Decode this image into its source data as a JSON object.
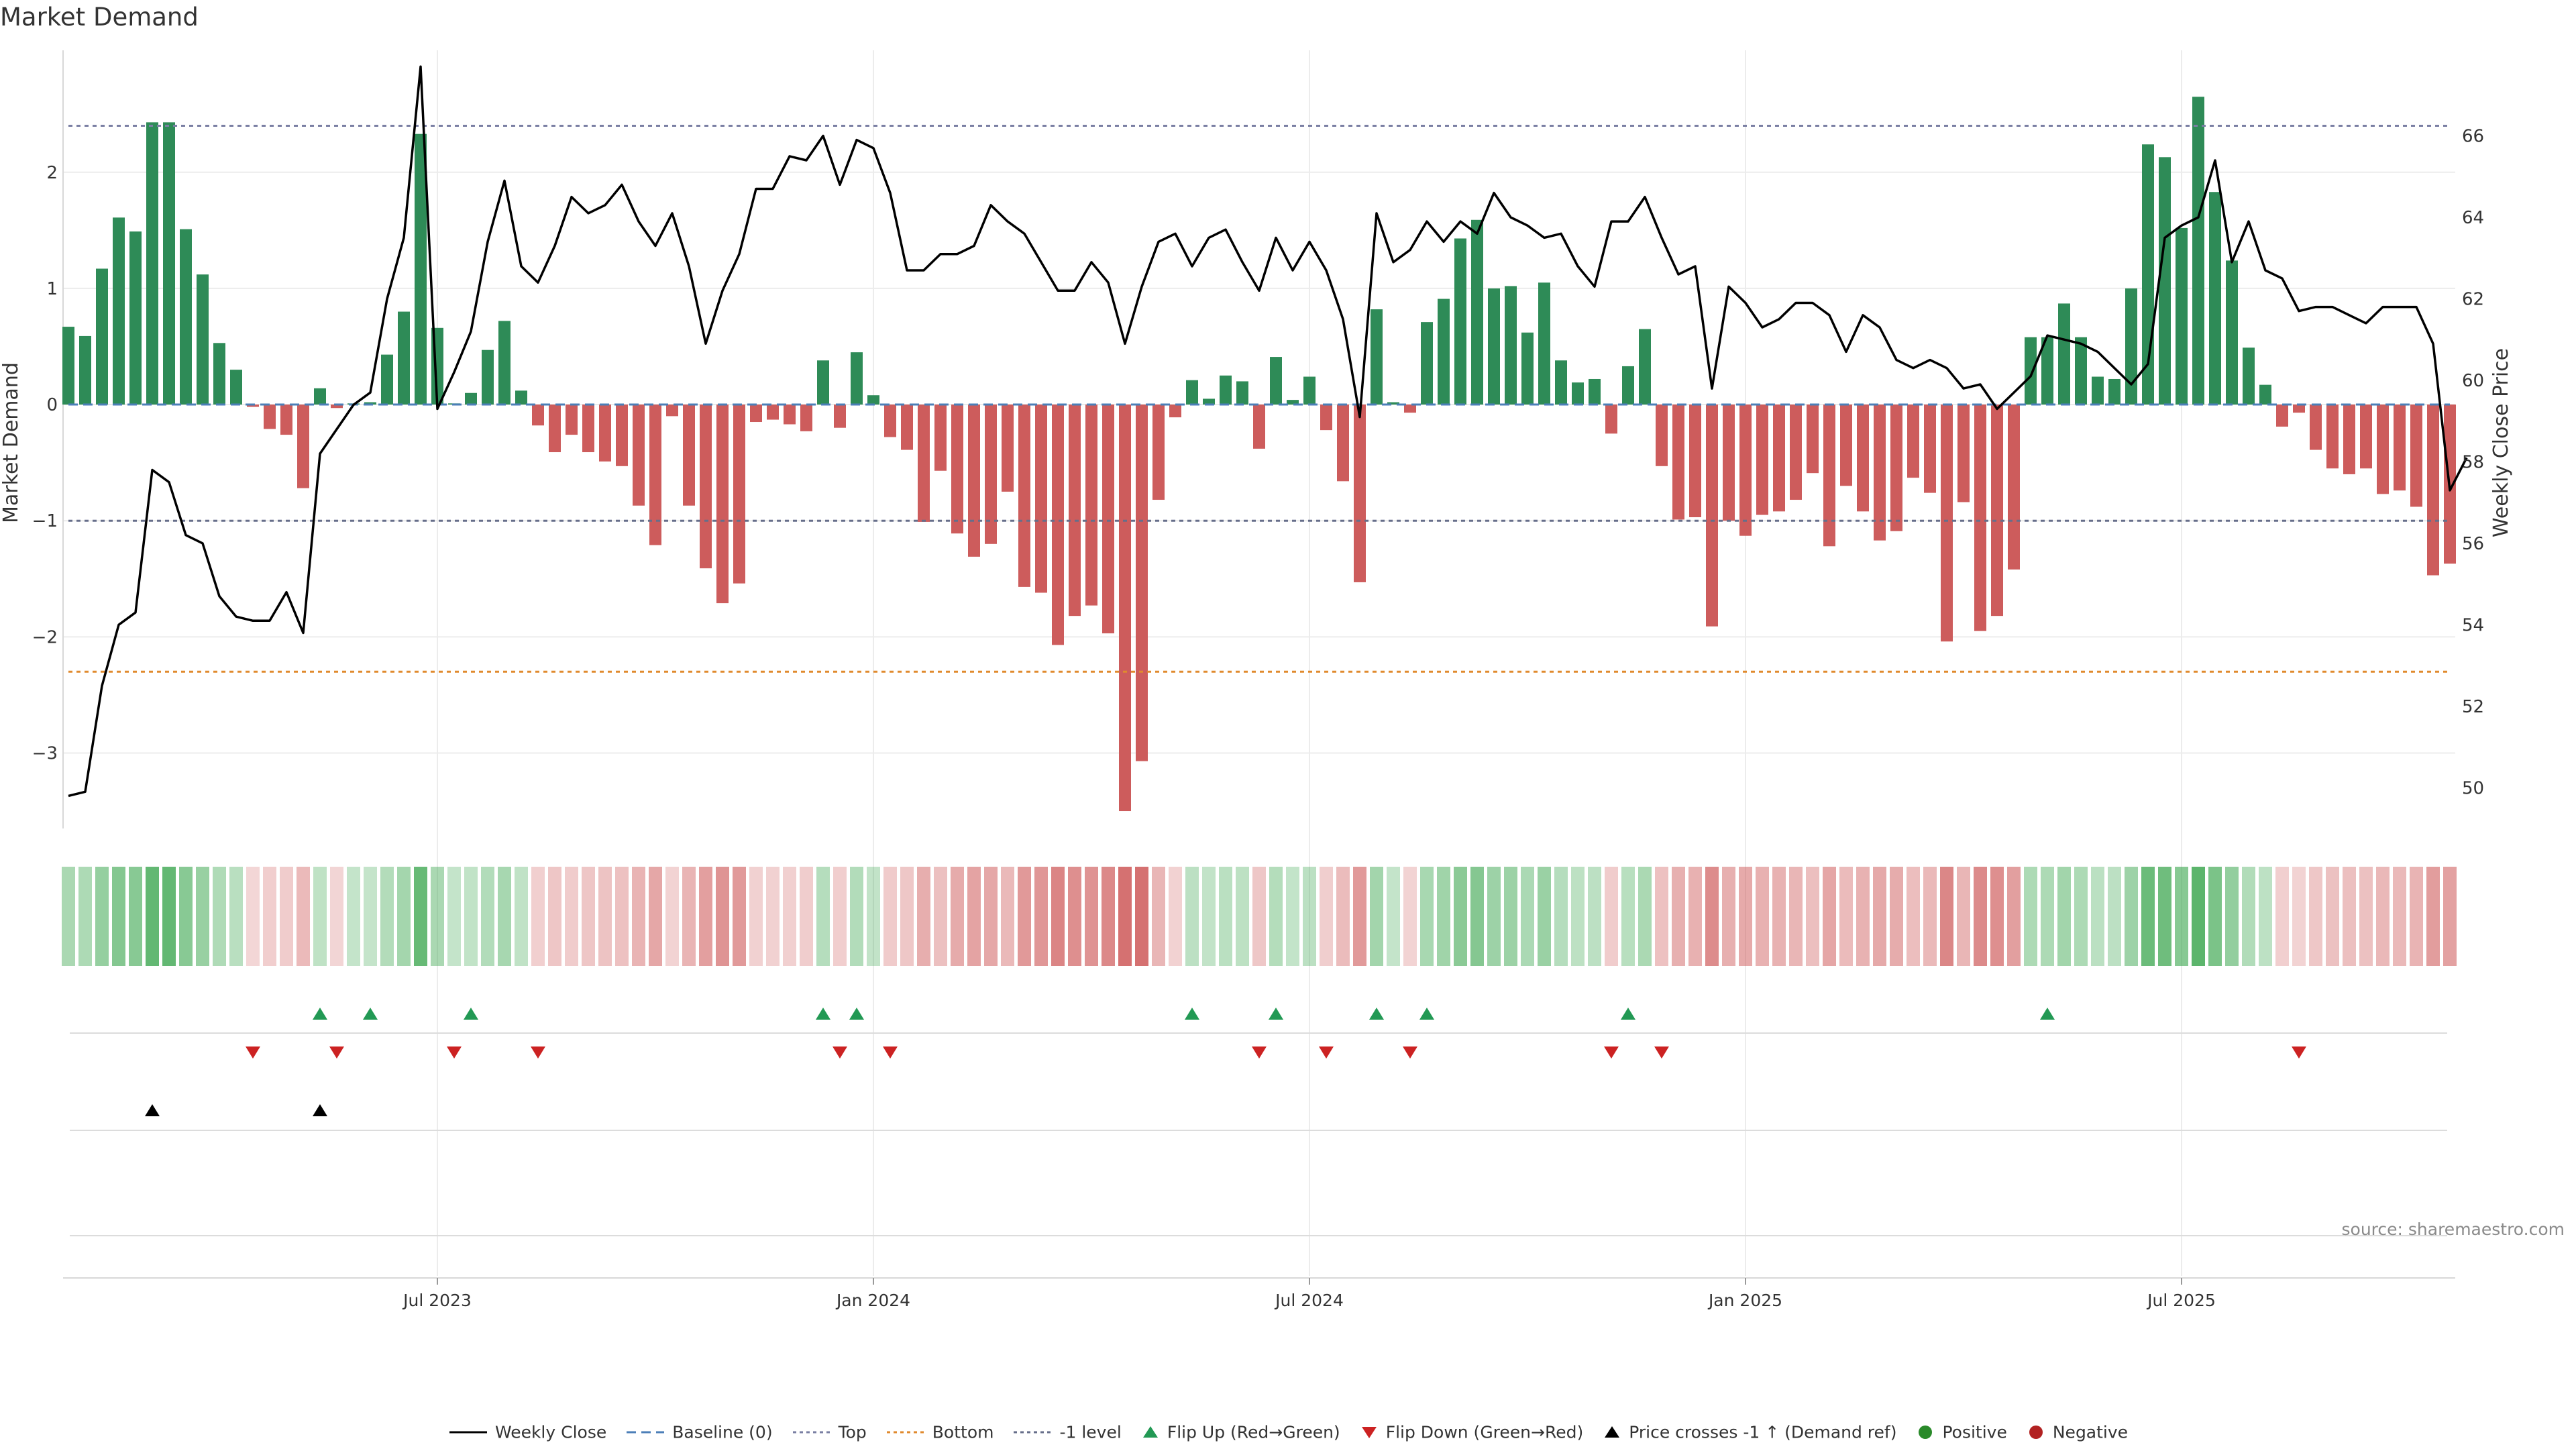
{
  "chart_data": {
    "type": "bar",
    "title": "Market Demand",
    "source": "source: sharemaestro.com",
    "y_left": {
      "label": "Market Demand",
      "range": [
        -3.65,
        3.05
      ],
      "ticks": [
        {
          "v": 2,
          "t": "2"
        },
        {
          "v": 1,
          "t": "1"
        },
        {
          "v": 0,
          "t": "0"
        },
        {
          "v": -1,
          "t": "−1"
        },
        {
          "v": -2,
          "t": "−2"
        },
        {
          "v": -3,
          "t": "−3"
        }
      ]
    },
    "y_right": {
      "label": "Weekly Close Price",
      "range": [
        49,
        68.1
      ],
      "ticks": [
        {
          "v": 50,
          "t": "50"
        },
        {
          "v": 52,
          "t": "52"
        },
        {
          "v": 54,
          "t": "54"
        },
        {
          "v": 56,
          "t": "56"
        },
        {
          "v": 58,
          "t": "58"
        },
        {
          "v": 60,
          "t": "60"
        },
        {
          "v": 62,
          "t": "62"
        },
        {
          "v": 64,
          "t": "64"
        },
        {
          "v": 66,
          "t": "66"
        }
      ]
    },
    "x_ticks": [
      {
        "i": 22,
        "t": "Jul 2023"
      },
      {
        "i": 48,
        "t": "Jan 2024"
      },
      {
        "i": 74,
        "t": "Jul 2024"
      },
      {
        "i": 100,
        "t": "Jan 2025"
      },
      {
        "i": 126,
        "t": "Jul 2025"
      }
    ],
    "reference_lines": [
      {
        "name": "Top",
        "value": 2.4,
        "color": "#7a7fa3",
        "dash": "6,6"
      },
      {
        "name": "Bottom",
        "value": -2.3,
        "color": "#e08a2e",
        "dash": "6,6"
      },
      {
        "name": "-1 level",
        "value": -1,
        "color": "#666e8a",
        "dash": "6,6"
      },
      {
        "name": "Baseline (0)",
        "value": 0,
        "color": "#4c7fb8",
        "dash": "14,8"
      }
    ],
    "colors": {
      "positive": "#2e8b57",
      "negative": "#cd5c5c",
      "close": "#000000",
      "flip_up": "#229954",
      "flip_down": "#cc2222",
      "cross": "#000000"
    },
    "demand": [
      0.67,
      0.59,
      1.17,
      1.61,
      1.49,
      2.43,
      2.43,
      1.51,
      1.12,
      0.53,
      0.3,
      -0.02,
      -0.21,
      -0.26,
      -0.72,
      0.14,
      -0.03,
      0.01,
      0.02,
      0.43,
      0.8,
      2.33,
      0.66,
      0.01,
      0.1,
      0.47,
      0.72,
      0.12,
      -0.18,
      -0.41,
      -0.26,
      -0.41,
      -0.49,
      -0.53,
      -0.87,
      -1.21,
      -0.1,
      -0.87,
      -1.41,
      -1.71,
      -1.54,
      -0.15,
      -0.13,
      -0.17,
      -0.23,
      0.38,
      -0.2,
      0.45,
      0.08,
      -0.28,
      -0.39,
      -1.01,
      -0.57,
      -1.11,
      -1.31,
      -1.2,
      -0.75,
      -1.57,
      -1.62,
      -2.07,
      -1.82,
      -1.73,
      -1.97,
      -3.5,
      -3.07,
      -0.82,
      -0.11,
      0.21,
      0.05,
      0.25,
      0.2,
      -0.38,
      0.41,
      0.04,
      0.24,
      -0.22,
      -0.66,
      -1.53,
      0.82,
      0.02,
      -0.07,
      0.71,
      0.91,
      1.43,
      1.59,
      1,
      1.02,
      0.62,
      1.05,
      0.38,
      0.19,
      0.22,
      -0.25,
      0.33,
      0.65,
      -0.53,
      -0.99,
      -0.97,
      -1.91,
      -1,
      -1.13,
      -0.95,
      -0.92,
      -0.82,
      -0.59,
      -1.22,
      -0.7,
      -0.92,
      -1.17,
      -1.09,
      -0.63,
      -0.76,
      -2.04,
      -0.84,
      -1.95,
      -1.82,
      -1.42,
      0.58,
      0.58,
      0.87,
      0.58,
      0.24,
      0.22,
      1,
      2.24,
      2.13,
      1.52,
      2.65,
      1.83,
      1.24,
      0.49,
      0.17,
      -0.19,
      -0.07,
      -0.39,
      -0.55,
      -0.6,
      -0.55,
      -0.77,
      -0.74,
      -0.88,
      -1.47,
      -1.37
    ],
    "weekly_close": [
      49.8,
      49.9,
      52.5,
      54,
      54.3,
      57.8,
      57.5,
      56.2,
      56,
      54.7,
      54.2,
      54.1,
      54.1,
      54.8,
      53.8,
      58.2,
      58.8,
      59.4,
      59.7,
      62,
      63.5,
      67.7,
      59.3,
      60.2,
      61.2,
      63.4,
      64.9,
      62.8,
      62.4,
      63.3,
      64.5,
      64.1,
      64.3,
      64.8,
      63.9,
      63.3,
      64.1,
      62.8,
      60.9,
      62.2,
      63.1,
      64.7,
      64.7,
      65.5,
      65.4,
      66,
      64.8,
      65.9,
      65.7,
      64.6,
      62.7,
      62.7,
      63.1,
      63.1,
      63.3,
      64.3,
      63.9,
      63.6,
      62.9,
      62.2,
      62.2,
      62.9,
      62.4,
      60.9,
      62.3,
      63.4,
      63.6,
      62.8,
      63.5,
      63.7,
      62.9,
      62.2,
      63.5,
      62.7,
      63.4,
      62.7,
      61.5,
      59.1,
      64.1,
      62.9,
      63.2,
      63.9,
      63.4,
      63.9,
      63.6,
      64.6,
      64,
      63.8,
      63.5,
      63.6,
      62.8,
      62.3,
      63.9,
      63.9,
      64.5,
      63.5,
      62.6,
      62.8,
      59.8,
      62.3,
      61.9,
      61.3,
      61.5,
      61.9,
      61.9,
      61.6,
      60.7,
      61.6,
      61.3,
      60.5,
      60.3,
      60.5,
      60.3,
      59.8,
      59.9,
      59.3,
      59.7,
      60.1,
      61.1,
      61,
      60.9,
      60.7,
      60.3,
      59.9,
      60.4,
      63.5,
      63.8,
      64,
      65.4,
      62.9,
      63.9,
      62.7,
      62.5,
      61.7,
      61.8,
      61.8,
      61.6,
      61.4,
      61.8,
      61.8,
      61.8,
      60.9,
      57.3,
      58.1
    ],
    "flip_up": [
      15,
      18,
      24,
      45,
      47,
      67,
      72,
      78,
      81,
      93,
      118
    ],
    "flip_down": [
      11,
      16,
      23,
      28,
      46,
      49,
      71,
      75,
      80,
      92,
      95,
      133
    ],
    "price_crosses": [
      5,
      15
    ],
    "legend": [
      {
        "kind": "line",
        "label": "Weekly Close",
        "color": "#000000",
        "dash": ""
      },
      {
        "kind": "line",
        "label": "Baseline (0)",
        "color": "#4c7fb8",
        "dash": "14,8"
      },
      {
        "kind": "line",
        "label": "Top",
        "color": "#7a7fa3",
        "dash": "5,5"
      },
      {
        "kind": "line",
        "label": "Bottom",
        "color": "#e08a2e",
        "dash": "5,5"
      },
      {
        "kind": "line",
        "label": "-1 level",
        "color": "#666e8a",
        "dash": "5,5"
      },
      {
        "kind": "up",
        "label": "Flip Up (Red→Green)",
        "color": "#229954"
      },
      {
        "kind": "down",
        "label": "Flip Down (Green→Red)",
        "color": "#cc2222"
      },
      {
        "kind": "up",
        "label": "Price crosses -1 ↑ (Demand ref)",
        "color": "#000000"
      },
      {
        "kind": "dot",
        "label": "Positive",
        "color": "#2a8a2a"
      },
      {
        "kind": "dot",
        "label": "Negative",
        "color": "#b22222"
      }
    ]
  }
}
